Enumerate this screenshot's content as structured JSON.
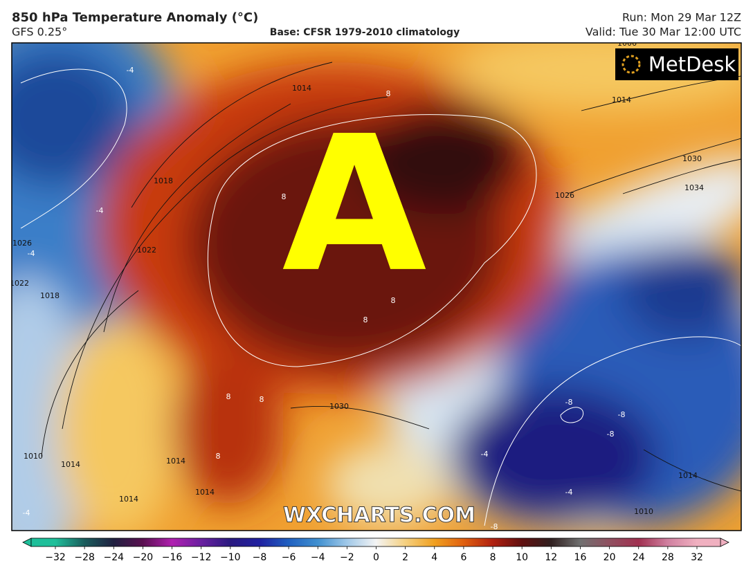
{
  "header": {
    "title": "850 hPa Temperature Anomaly (°C)",
    "model": "GFS 0.25°",
    "base": "Base: CFSR 1979-2010 climatology",
    "run": "Run: Mon 29 Mar 12Z",
    "valid": "Valid: Tue 30 Mar 12:00 UTC"
  },
  "map": {
    "logo": "MetDesk",
    "watermark": "WXCHARTS.COM",
    "overlay_letter": "A",
    "contour_labels": [
      -4,
      1014,
      8,
      1014,
      1030,
      1034,
      1026,
      1018,
      -4,
      8,
      -4,
      1026,
      1022,
      1022,
      1018,
      8,
      8,
      -8,
      -8,
      -8,
      1030,
      1006,
      1010,
      1014,
      1014,
      1014,
      1014,
      -4,
      -4,
      8,
      8,
      8,
      1014,
      1010,
      -8,
      -4
    ]
  },
  "colorbar": {
    "ticks": [
      {
        "value": -32,
        "label": "−32"
      },
      {
        "value": -28,
        "label": "−28"
      },
      {
        "value": -24,
        "label": "−24"
      },
      {
        "value": -20,
        "label": "−20"
      },
      {
        "value": -16,
        "label": "−16"
      },
      {
        "value": -12,
        "label": "−12"
      },
      {
        "value": -10,
        "label": "−10"
      },
      {
        "value": -8,
        "label": "−8"
      },
      {
        "value": -6,
        "label": "−6"
      },
      {
        "value": -4,
        "label": "−4"
      },
      {
        "value": -2,
        "label": "−2"
      },
      0,
      2,
      4,
      6,
      8,
      10,
      12,
      16,
      20,
      24,
      28,
      32
    ],
    "colors": [
      "#1fbf9a",
      "#1a5c5c",
      "#202040",
      "#5a1050",
      "#b020b0",
      "#6a20a0",
      "#2a1a80",
      "#2020a0",
      "#2060c0",
      "#4090d0",
      "#a0c8e8",
      "#f4f4f4",
      "#f5d080",
      "#f0a020",
      "#e06010",
      "#b02010",
      "#601010",
      "#302020",
      "#707070",
      "#905060",
      "#a03050",
      "#d080a0",
      "#f0b0c0"
    ]
  }
}
